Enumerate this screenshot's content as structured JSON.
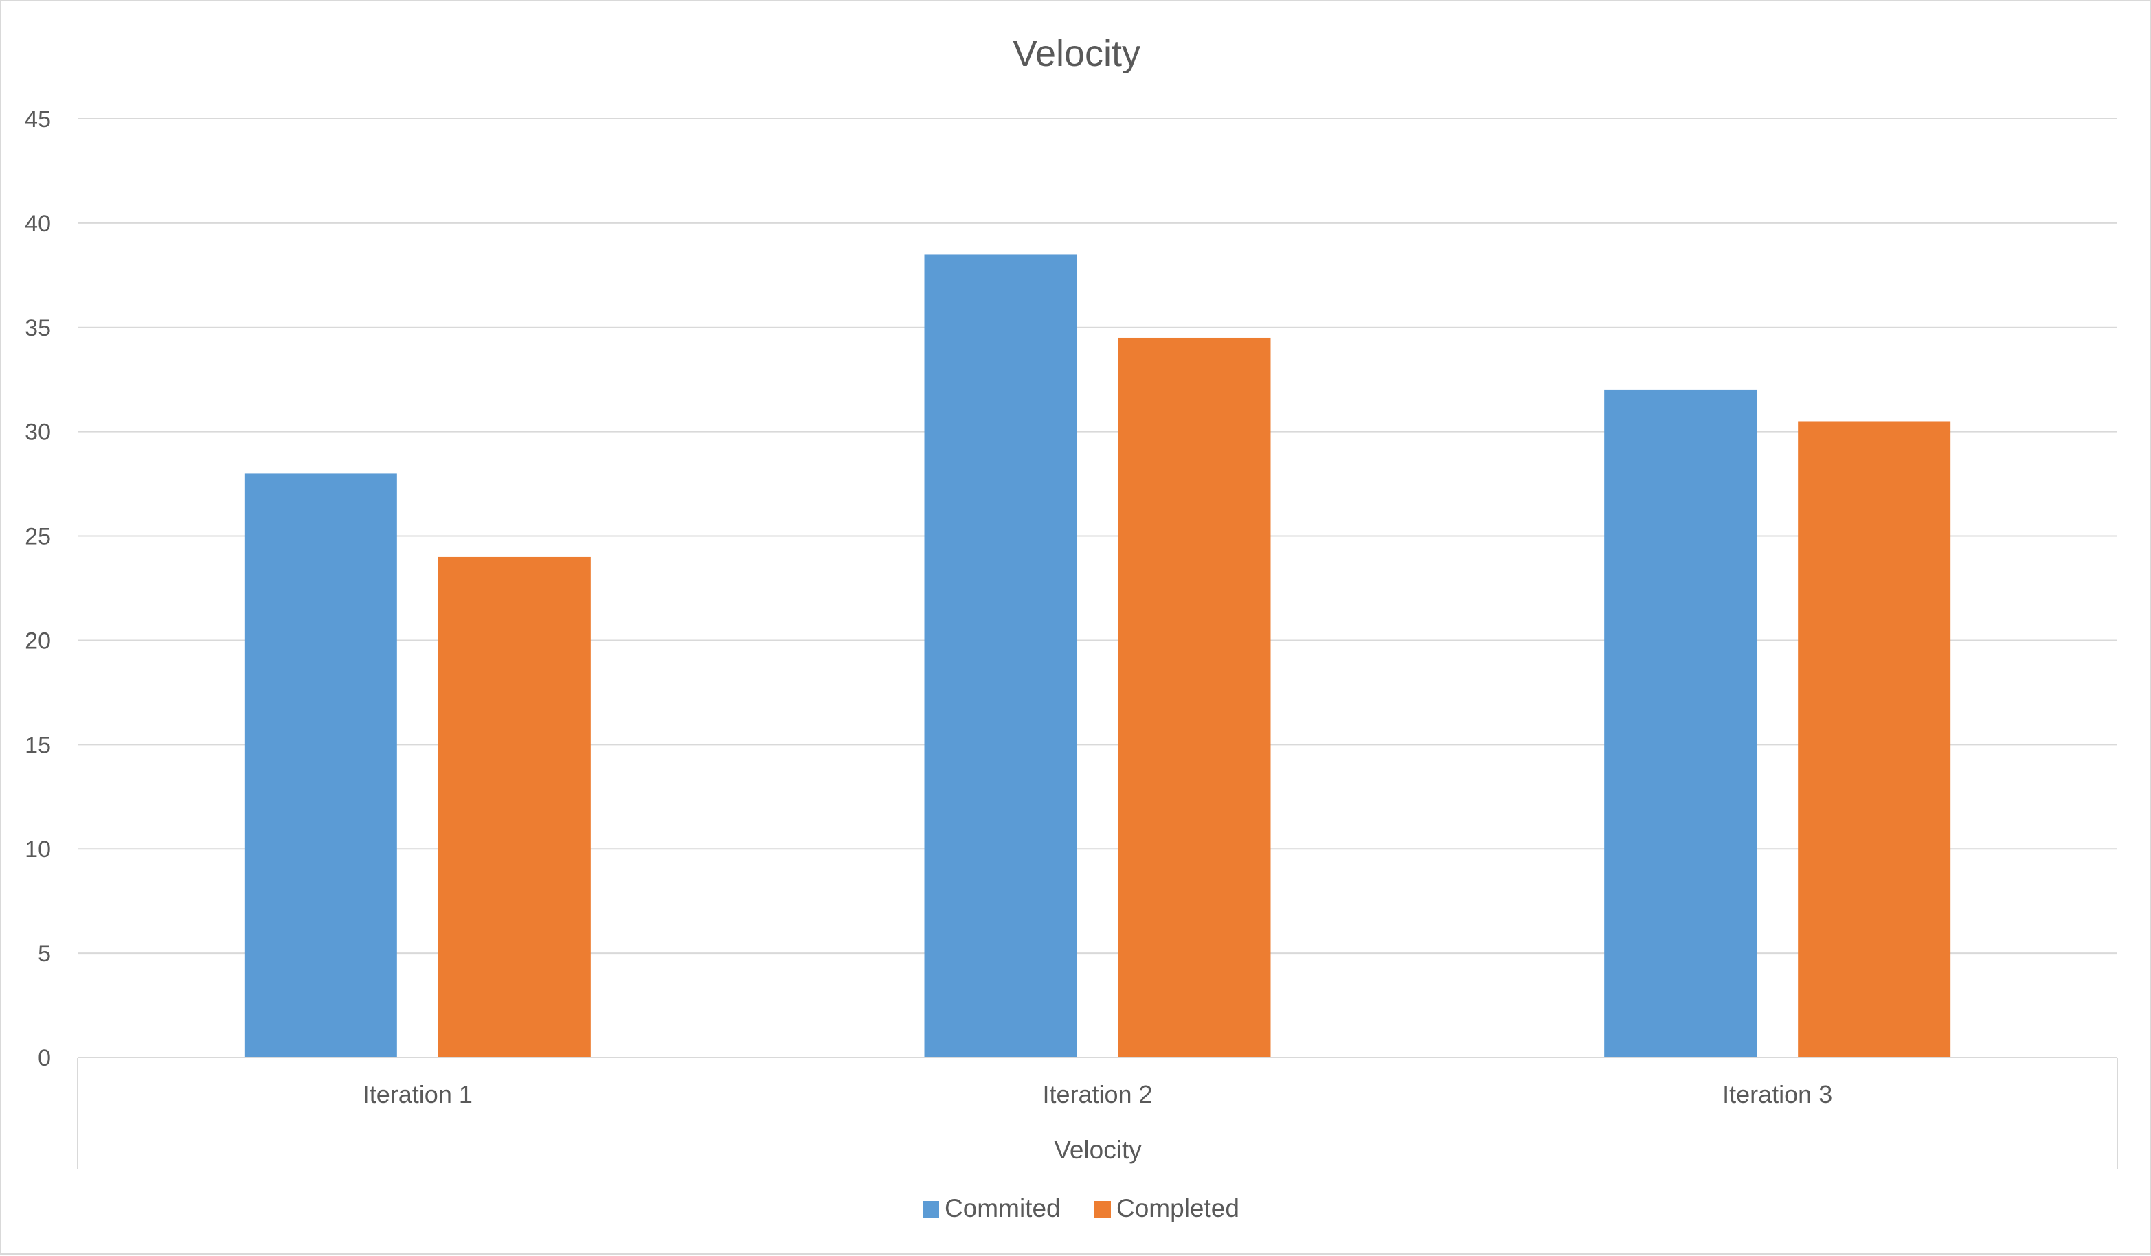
{
  "chart_data": {
    "type": "bar",
    "title": "Velocity",
    "xlabel": "Velocity",
    "ylabel": "",
    "categories": [
      "Iteration 1",
      "Iteration 2",
      "Iteration 3"
    ],
    "series": [
      {
        "name": "Commited",
        "color": "#5b9bd5",
        "values": [
          28,
          38.5,
          32
        ]
      },
      {
        "name": "Completed",
        "color": "#ed7d31",
        "values": [
          24,
          34.5,
          30.5
        ]
      }
    ],
    "ylim": [
      0,
      45
    ],
    "yticks": [
      0,
      5,
      10,
      15,
      20,
      25,
      30,
      35,
      40,
      45
    ],
    "grid": true,
    "legend_position": "bottom"
  }
}
